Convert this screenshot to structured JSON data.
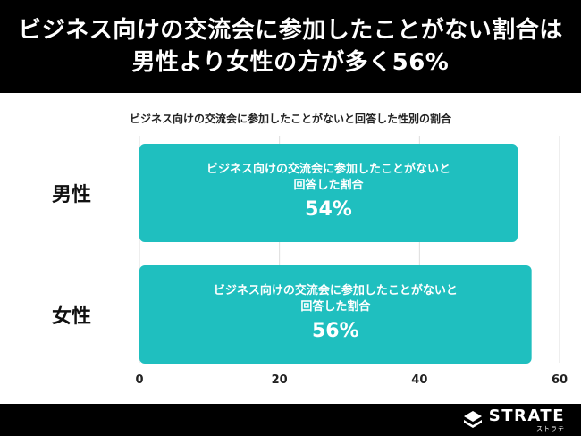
{
  "header": {
    "line1": "ビジネス向けの交流会に参加したことがない割合は",
    "line2": "男性より女性の方が多く56%"
  },
  "chart_data": {
    "type": "bar",
    "orientation": "horizontal",
    "title": "ビジネス向けの交流会に参加したことがないと回答した性別の割合",
    "categories": [
      "男性",
      "女性"
    ],
    "values": [
      54,
      56
    ],
    "value_labels": [
      "54%",
      "56%"
    ],
    "bar_descriptions": [
      [
        "ビジネス向けの交流会に参加したことがないと",
        "回答した割合"
      ],
      [
        "ビジネス向けの交流会に参加したことがないと",
        "回答した割合"
      ]
    ],
    "xlim": [
      0,
      60
    ],
    "xticks": [
      "0",
      "20",
      "40",
      "60"
    ],
    "grid": true,
    "bar_color": "#1FBFBF"
  },
  "footer": {
    "logo_text": "STRATE",
    "logo_kana": "ストラテ",
    "logo_icon": "strate-logo-icon"
  }
}
